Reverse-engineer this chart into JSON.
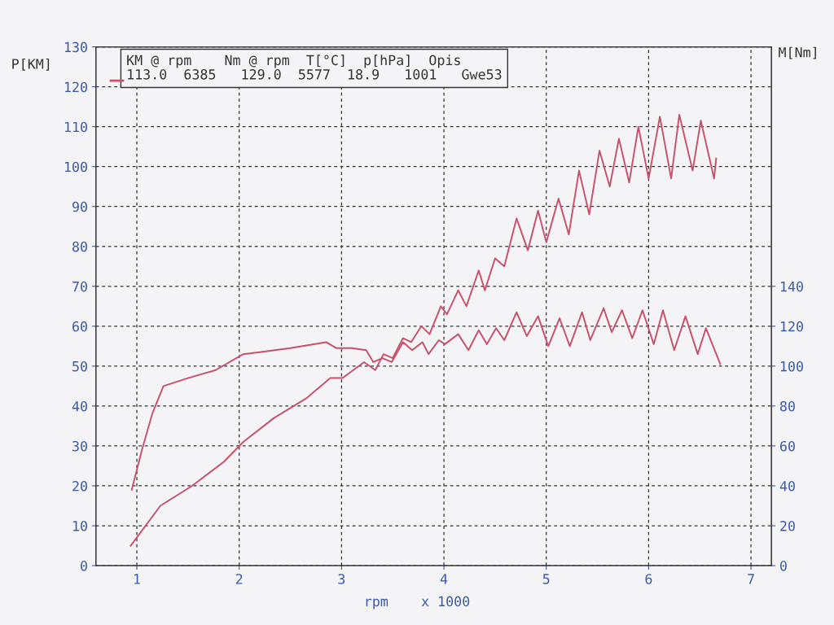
{
  "chart_data": {
    "type": "line",
    "xlabel": "rpm    x 1000",
    "ylabel": "P[KM]",
    "y2label": "M[Nm]",
    "annotations": [
      "KM @ rpm    Nm @ rpm  T[°C]  p[hPa]  Opis",
      "113.0  6385   129.0  5577  18.9   1001   Gwe53"
    ],
    "series": [
      {
        "color": "#c8506a",
        "axis": "y",
        "x": [
          0.94,
          1.23,
          1.54,
          1.85,
          2.04,
          2.34,
          2.66,
          2.89,
          3.01,
          3.22,
          3.33,
          3.41,
          3.5,
          3.6,
          3.68,
          3.78,
          3.86,
          3.97,
          4.03,
          4.14,
          4.22,
          4.34,
          4.4,
          4.5,
          4.59,
          4.71,
          4.82,
          4.92,
          5.0,
          5.12,
          5.22,
          5.32,
          5.42,
          5.52,
          5.62,
          5.71,
          5.81,
          5.9,
          6.0,
          6.11,
          6.22,
          6.3,
          6.43,
          6.51,
          6.64,
          6.66
        ],
        "values": [
          5,
          15,
          20,
          26,
          31,
          37,
          42,
          47,
          47,
          51,
          49,
          53,
          52,
          57,
          56,
          60,
          58,
          65,
          63,
          69,
          65,
          74,
          69,
          77,
          75,
          87,
          79,
          89,
          81,
          92,
          83,
          99,
          88,
          104,
          95,
          107,
          96,
          110,
          97,
          112.5,
          97,
          113,
          99,
          111.5,
          97,
          102
        ]
      },
      {
        "color": "#c8506a",
        "axis": "y2",
        "x": [
          0.95,
          1.05,
          1.15,
          1.26,
          1.5,
          1.77,
          2.04,
          2.2,
          2.5,
          2.85,
          2.95,
          3.1,
          3.24,
          3.31,
          3.4,
          3.49,
          3.6,
          3.69,
          3.79,
          3.85,
          3.95,
          4.01,
          4.14,
          4.24,
          4.34,
          4.42,
          4.51,
          4.59,
          4.71,
          4.81,
          4.92,
          5.02,
          5.13,
          5.23,
          5.35,
          5.43,
          5.56,
          5.64,
          5.74,
          5.84,
          5.94,
          6.05,
          6.14,
          6.25,
          6.36,
          6.48,
          6.56,
          6.7
        ],
        "values": [
          38,
          58,
          76,
          90,
          94,
          98,
          106,
          107,
          109,
          112,
          109,
          109,
          108,
          102,
          104,
          102,
          112,
          108,
          112,
          106,
          113,
          111,
          116,
          108,
          118,
          111,
          119,
          113,
          127,
          115,
          125,
          110,
          124,
          110,
          127,
          113,
          129,
          117,
          128,
          114,
          128,
          111,
          128,
          108,
          125,
          106,
          119,
          101
        ]
      }
    ],
    "xlim": [
      0.6,
      7.2
    ],
    "xticks": [
      1,
      2,
      3,
      4,
      5,
      6,
      7
    ],
    "ylim": [
      0,
      130
    ],
    "yticks": [
      0,
      10,
      20,
      30,
      40,
      50,
      60,
      70,
      80,
      90,
      100,
      110,
      120,
      130
    ],
    "y2lim": [
      0,
      260
    ],
    "y2ticks": [
      0,
      20,
      40,
      60,
      80,
      100,
      120,
      140
    ],
    "grid": true,
    "line_style": "solid",
    "marker": "none"
  }
}
